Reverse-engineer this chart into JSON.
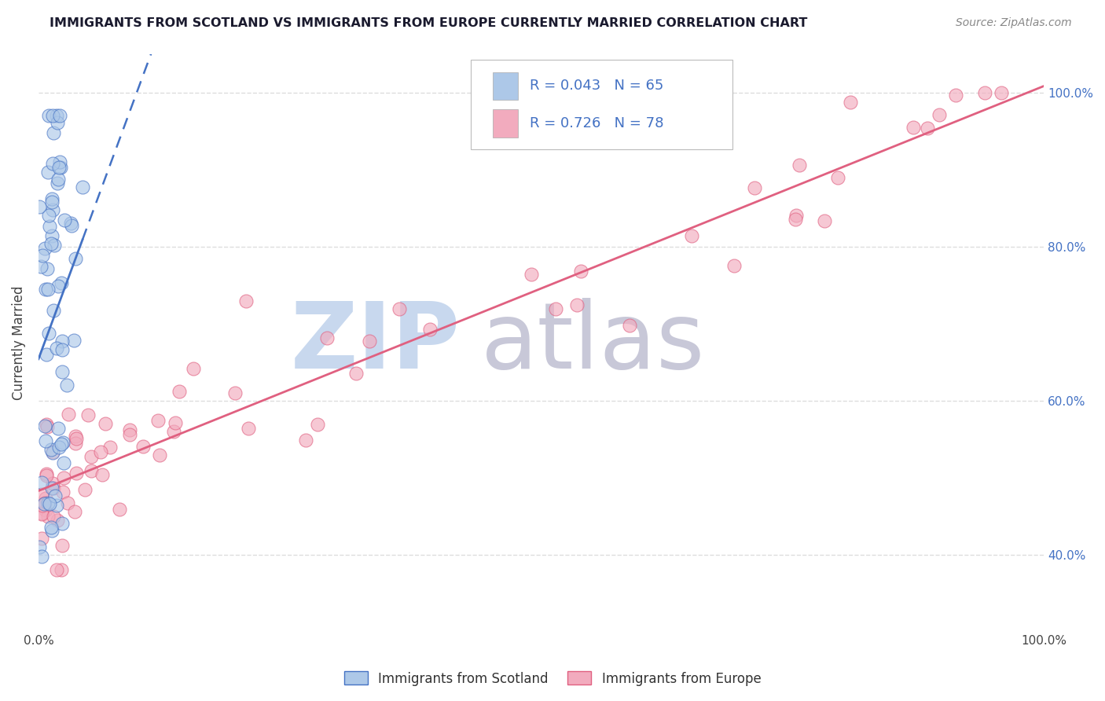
{
  "title": "IMMIGRANTS FROM SCOTLAND VS IMMIGRANTS FROM EUROPE CURRENTLY MARRIED CORRELATION CHART",
  "source": "Source: ZipAtlas.com",
  "ylabel": "Currently Married",
  "xlim": [
    0.0,
    1.0
  ],
  "ylim": [
    0.3,
    1.05
  ],
  "x_tick_labels": [
    "0.0%",
    "",
    "",
    "",
    "",
    "100.0%"
  ],
  "x_tick_positions": [
    0.0,
    0.2,
    0.4,
    0.6,
    0.8,
    1.0
  ],
  "y_tick_labels": [
    "40.0%",
    "60.0%",
    "80.0%",
    "100.0%"
  ],
  "y_tick_positions": [
    0.4,
    0.6,
    0.8,
    1.0
  ],
  "legend_label1": "Immigrants from Scotland",
  "legend_label2": "Immigrants from Europe",
  "R1": 0.043,
  "N1": 65,
  "R2": 0.726,
  "N2": 78,
  "color_scotland": "#adc8e8",
  "color_europe": "#f2abbe",
  "trendline_color_scotland": "#4472c4",
  "trendline_color_europe": "#e06080",
  "background_color": "#ffffff",
  "grid_color": "#dddddd",
  "watermark_zip_color": "#c8d8ee",
  "watermark_atlas_color": "#c8c8d8",
  "title_color": "#1a1a2e",
  "source_color": "#888888",
  "right_axis_color": "#4472c4",
  "legend_text_color": "#4472c4"
}
